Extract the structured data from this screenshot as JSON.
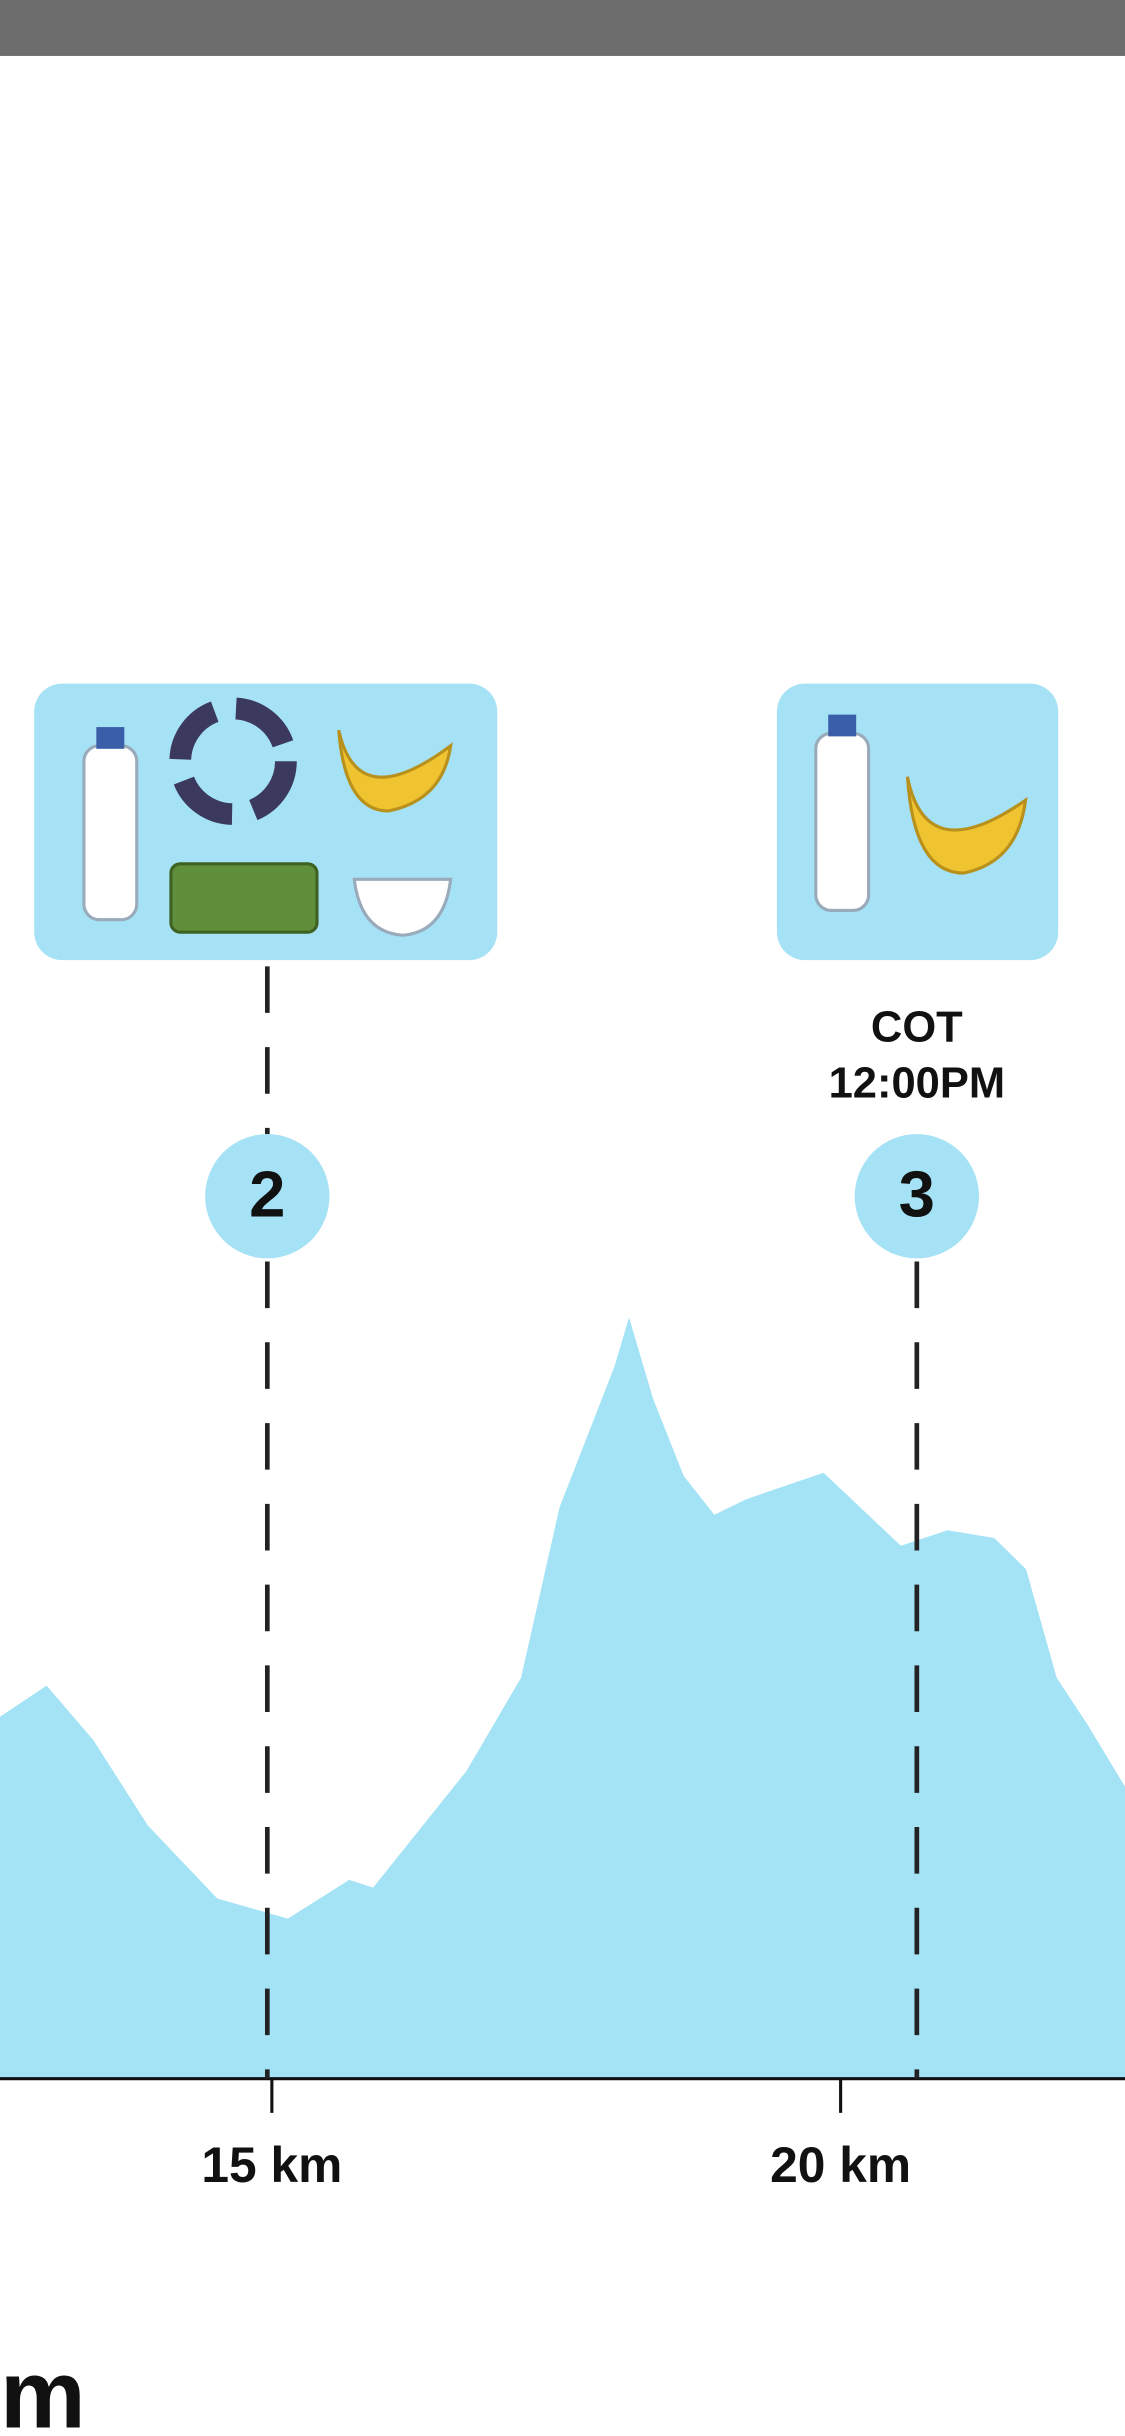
{
  "chart_data": {
    "type": "area",
    "x": [
      12.61,
      13.02,
      13.43,
      13.91,
      14.52,
      15.14,
      15.68,
      15.89,
      16.71,
      17.19,
      17.53,
      18.01,
      18.14,
      18.35,
      18.62,
      18.89,
      19.17,
      19.85,
      20.53,
      20.94,
      21.35,
      21.63,
      21.9,
      22.17,
      22.5
    ],
    "series": [
      {
        "color": "#a4e3f5",
        "values": [
          233,
          253,
          218,
          163,
          116,
          103,
          128,
          123,
          198,
          258,
          368,
          458,
          490,
          438,
          388,
          363,
          373,
          390,
          343,
          353,
          348,
          328,
          258,
          228,
          188
        ]
      }
    ],
    "xlim": [
      12.61,
      22.5
    ],
    "ylim": [
      0,
      500
    ],
    "xticks": [
      {
        "value": 15,
        "label": "15 km"
      },
      {
        "value": 20,
        "label": "20 km"
      }
    ],
    "aid_stations": [
      {
        "number": 2,
        "km": 14.96
      },
      {
        "number": 3,
        "km": 20.67,
        "cutoff": "COT",
        "time": "12:00PM"
      }
    ],
    "bottom_text": "m"
  }
}
